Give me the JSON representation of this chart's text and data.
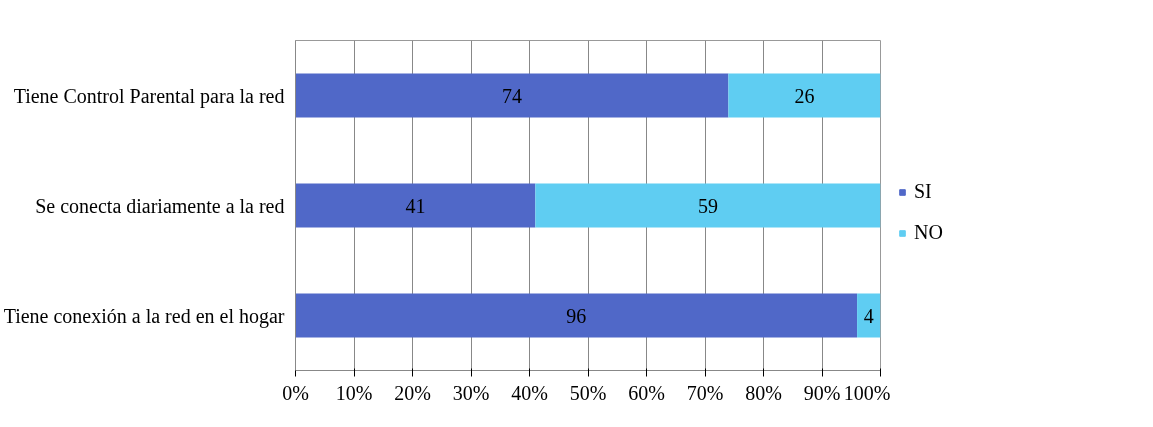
{
  "chart_data": {
    "type": "bar",
    "orientation": "horizontal",
    "stacked": true,
    "categories": [
      "Tiene Control Parental para la red",
      "Se conecta diariamente a la red",
      "Tiene conexión a la red en el hogar"
    ],
    "series": [
      {
        "name": "SI",
        "color": "#5068c8",
        "values": [
          74,
          41,
          96
        ]
      },
      {
        "name": "NO",
        "color": "#5fcdf2",
        "values": [
          26,
          59,
          4
        ]
      }
    ],
    "xlim": [
      0,
      100
    ],
    "xticks": [
      {
        "value": 0,
        "label": "0%"
      },
      {
        "value": 10,
        "label": "10%"
      },
      {
        "value": 20,
        "label": "20%"
      },
      {
        "value": 30,
        "label": "30%"
      },
      {
        "value": 40,
        "label": "40%"
      },
      {
        "value": 50,
        "label": "50%"
      },
      {
        "value": 60,
        "label": "60%"
      },
      {
        "value": 70,
        "label": "70%"
      },
      {
        "value": 80,
        "label": "80%"
      },
      {
        "value": 90,
        "label": "90%"
      },
      {
        "value": 100,
        "label": "100%"
      }
    ],
    "grid": "x",
    "legend": "right",
    "data_labels": true
  }
}
